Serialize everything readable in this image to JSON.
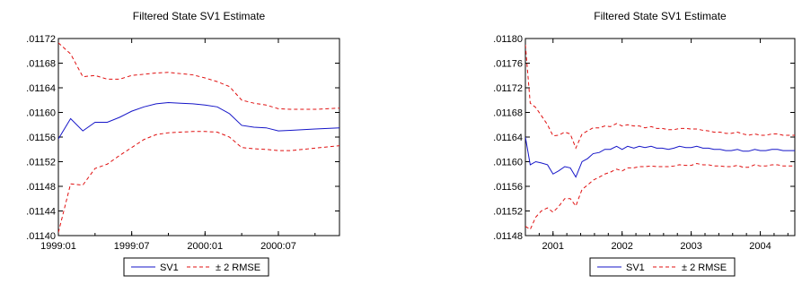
{
  "chart_data": [
    {
      "type": "line",
      "title": "Filtered State SV1 Estimate",
      "xlabel": "",
      "ylabel": "",
      "ylim": [
        0.0114,
        0.01172
      ],
      "yticks": [
        ".01140",
        ".01144",
        ".01148",
        ".01152",
        ".01156",
        ".01160",
        ".01164",
        ".01168",
        ".01172"
      ],
      "xlim": [
        0,
        23
      ],
      "xticks": [
        {
          "x": 0,
          "label": "1999:01"
        },
        {
          "x": 6,
          "label": "1999:07"
        },
        {
          "x": 12,
          "label": "2000:01"
        },
        {
          "x": 18,
          "label": "2000:07"
        }
      ],
      "grid": false,
      "legend_position": "bottom-center",
      "series": [
        {
          "name": "SV1",
          "color": "#1515c8",
          "style": "solid",
          "x": [
            0,
            1,
            2,
            3,
            4,
            5,
            6,
            7,
            8,
            9,
            10,
            11,
            12,
            13,
            14,
            15,
            16,
            17,
            18,
            19,
            20,
            21,
            22,
            23
          ],
          "y": [
            0.011557,
            0.01159,
            0.01157,
            0.011584,
            0.011584,
            0.011592,
            0.011602,
            0.011609,
            0.011614,
            0.011616,
            0.011615,
            0.011614,
            0.011612,
            0.011609,
            0.011598,
            0.011579,
            0.011576,
            0.011575,
            0.01157,
            0.011571,
            0.011572,
            0.011573,
            0.011574,
            0.011575
          ]
        },
        {
          "name": "± 2 RMSE",
          "color": "#e01010",
          "style": "dashed",
          "x": [
            0,
            1,
            2,
            3,
            4,
            5,
            6,
            7,
            8,
            9,
            10,
            11,
            12,
            13,
            14,
            15,
            16,
            17,
            18,
            19,
            20,
            21,
            22,
            23
          ],
          "y": [
            0.011713,
            0.011695,
            0.011658,
            0.01166,
            0.011654,
            0.011654,
            0.01166,
            0.011662,
            0.011664,
            0.011665,
            0.011663,
            0.011661,
            0.011656,
            0.01165,
            0.011642,
            0.01162,
            0.011615,
            0.011612,
            0.011606,
            0.011605,
            0.011605,
            0.011605,
            0.011606,
            0.011607
          ]
        },
        {
          "name": "",
          "color": "#e01010",
          "style": "dashed",
          "x": [
            0,
            1,
            2,
            3,
            4,
            5,
            6,
            7,
            8,
            9,
            10,
            11,
            12,
            13,
            14,
            15,
            16,
            17,
            18,
            19,
            20,
            21,
            22,
            23
          ],
          "y": [
            0.011405,
            0.011484,
            0.011482,
            0.011509,
            0.011516,
            0.01153,
            0.011543,
            0.011556,
            0.011564,
            0.011567,
            0.011568,
            0.011569,
            0.011569,
            0.011568,
            0.01156,
            0.011543,
            0.011541,
            0.01154,
            0.011538,
            0.011538,
            0.01154,
            0.011542,
            0.011544,
            0.011546
          ]
        }
      ],
      "legend": [
        {
          "label": "SV1",
          "color": "#1515c8",
          "style": "solid"
        },
        {
          "label": "± 2 RMSE",
          "color": "#e01010",
          "style": "dashed"
        }
      ]
    },
    {
      "type": "line",
      "title": "Filtered State SV1 Estimate",
      "xlabel": "",
      "ylabel": "",
      "ylim": [
        0.01148,
        0.0118
      ],
      "yticks": [
        ".01148",
        ".01152",
        ".01156",
        ".01160",
        ".01164",
        ".01168",
        ".01172",
        ".01176",
        ".01180"
      ],
      "xlim": [
        2000.6,
        2004.5
      ],
      "xticks": [
        {
          "x": 2001.0,
          "label": "2001"
        },
        {
          "x": 2002.0,
          "label": "2002"
        },
        {
          "x": 2003.0,
          "label": "2003"
        },
        {
          "x": 2004.0,
          "label": "2004"
        }
      ],
      "grid": false,
      "legend_position": "bottom-center",
      "series": [
        {
          "name": "SV1",
          "color": "#1515c8",
          "style": "solid",
          "x": [
            2000.6,
            2000.67,
            2000.75,
            2000.83,
            2000.92,
            2001.0,
            2001.08,
            2001.17,
            2001.25,
            2001.33,
            2001.42,
            2001.5,
            2001.58,
            2001.67,
            2001.75,
            2001.83,
            2001.92,
            2002.0,
            2002.08,
            2002.17,
            2002.25,
            2002.33,
            2002.42,
            2002.5,
            2002.58,
            2002.67,
            2002.75,
            2002.83,
            2002.92,
            2003.0,
            2003.08,
            2003.17,
            2003.25,
            2003.33,
            2003.42,
            2003.5,
            2003.58,
            2003.67,
            2003.75,
            2003.83,
            2003.92,
            2004.0,
            2004.08,
            2004.17,
            2004.25,
            2004.33,
            2004.42,
            2004.5
          ],
          "y": [
            0.01164,
            0.011595,
            0.0116,
            0.011598,
            0.011595,
            0.01158,
            0.011585,
            0.011592,
            0.01159,
            0.011575,
            0.0116,
            0.011605,
            0.011613,
            0.011615,
            0.01162,
            0.01162,
            0.011625,
            0.01162,
            0.011625,
            0.011622,
            0.011625,
            0.011623,
            0.011625,
            0.011622,
            0.011622,
            0.01162,
            0.011622,
            0.011625,
            0.011623,
            0.011623,
            0.011625,
            0.011622,
            0.011622,
            0.01162,
            0.01162,
            0.011618,
            0.011618,
            0.01162,
            0.011617,
            0.011617,
            0.01162,
            0.011618,
            0.011618,
            0.01162,
            0.01162,
            0.011618,
            0.011618,
            0.011618
          ]
        },
        {
          "name": "± 2 RMSE",
          "color": "#e01010",
          "style": "dashed",
          "x": [
            2000.6,
            2000.67,
            2000.75,
            2000.83,
            2000.92,
            2001.0,
            2001.08,
            2001.17,
            2001.25,
            2001.33,
            2001.42,
            2001.5,
            2001.58,
            2001.67,
            2001.75,
            2001.83,
            2001.92,
            2002.0,
            2002.08,
            2002.17,
            2002.25,
            2002.33,
            2002.42,
            2002.5,
            2002.58,
            2002.67,
            2002.75,
            2002.83,
            2002.92,
            2003.0,
            2003.08,
            2003.17,
            2003.25,
            2003.33,
            2003.42,
            2003.5,
            2003.58,
            2003.67,
            2003.75,
            2003.83,
            2003.92,
            2004.0,
            2004.08,
            2004.17,
            2004.25,
            2004.33,
            2004.42,
            2004.5
          ],
          "y": [
            0.01179,
            0.011695,
            0.011688,
            0.011675,
            0.01166,
            0.011642,
            0.011643,
            0.011648,
            0.011645,
            0.011622,
            0.011645,
            0.01165,
            0.011655,
            0.011655,
            0.011658,
            0.011657,
            0.011662,
            0.011658,
            0.01166,
            0.011658,
            0.011658,
            0.011655,
            0.011657,
            0.011654,
            0.011654,
            0.011652,
            0.011652,
            0.011654,
            0.011654,
            0.011653,
            0.011653,
            0.011651,
            0.01165,
            0.011648,
            0.011648,
            0.011646,
            0.011646,
            0.011648,
            0.011645,
            0.011643,
            0.011645,
            0.011643,
            0.011643,
            0.011645,
            0.011645,
            0.011643,
            0.011643,
            0.011643
          ]
        },
        {
          "name": "",
          "color": "#e01010",
          "style": "dashed",
          "x": [
            2000.6,
            2000.67,
            2000.75,
            2000.83,
            2000.92,
            2001.0,
            2001.08,
            2001.17,
            2001.25,
            2001.33,
            2001.42,
            2001.5,
            2001.58,
            2001.67,
            2001.75,
            2001.83,
            2001.92,
            2002.0,
            2002.08,
            2002.17,
            2002.25,
            2002.33,
            2002.42,
            2002.5,
            2002.58,
            2002.67,
            2002.75,
            2002.83,
            2002.92,
            2003.0,
            2003.08,
            2003.17,
            2003.25,
            2003.33,
            2003.42,
            2003.5,
            2003.58,
            2003.67,
            2003.75,
            2003.83,
            2003.92,
            2004.0,
            2004.08,
            2004.17,
            2004.25,
            2004.33,
            2004.42,
            2004.5
          ],
          "y": [
            0.011495,
            0.01149,
            0.01151,
            0.01152,
            0.011525,
            0.011518,
            0.011527,
            0.01154,
            0.01154,
            0.011528,
            0.011555,
            0.011562,
            0.01157,
            0.011575,
            0.01158,
            0.011583,
            0.011588,
            0.011585,
            0.01159,
            0.01159,
            0.011592,
            0.011592,
            0.011593,
            0.011592,
            0.011592,
            0.011592,
            0.011593,
            0.011595,
            0.011594,
            0.011594,
            0.011597,
            0.011595,
            0.011595,
            0.011593,
            0.011593,
            0.011592,
            0.011592,
            0.011594,
            0.011591,
            0.011591,
            0.011595,
            0.011593,
            0.011593,
            0.011595,
            0.011595,
            0.011593,
            0.011593,
            0.011593
          ]
        }
      ],
      "legend": [
        {
          "label": "SV1",
          "color": "#1515c8",
          "style": "solid"
        },
        {
          "label": "± 2 RMSE",
          "color": "#e01010",
          "style": "dashed"
        }
      ]
    }
  ]
}
